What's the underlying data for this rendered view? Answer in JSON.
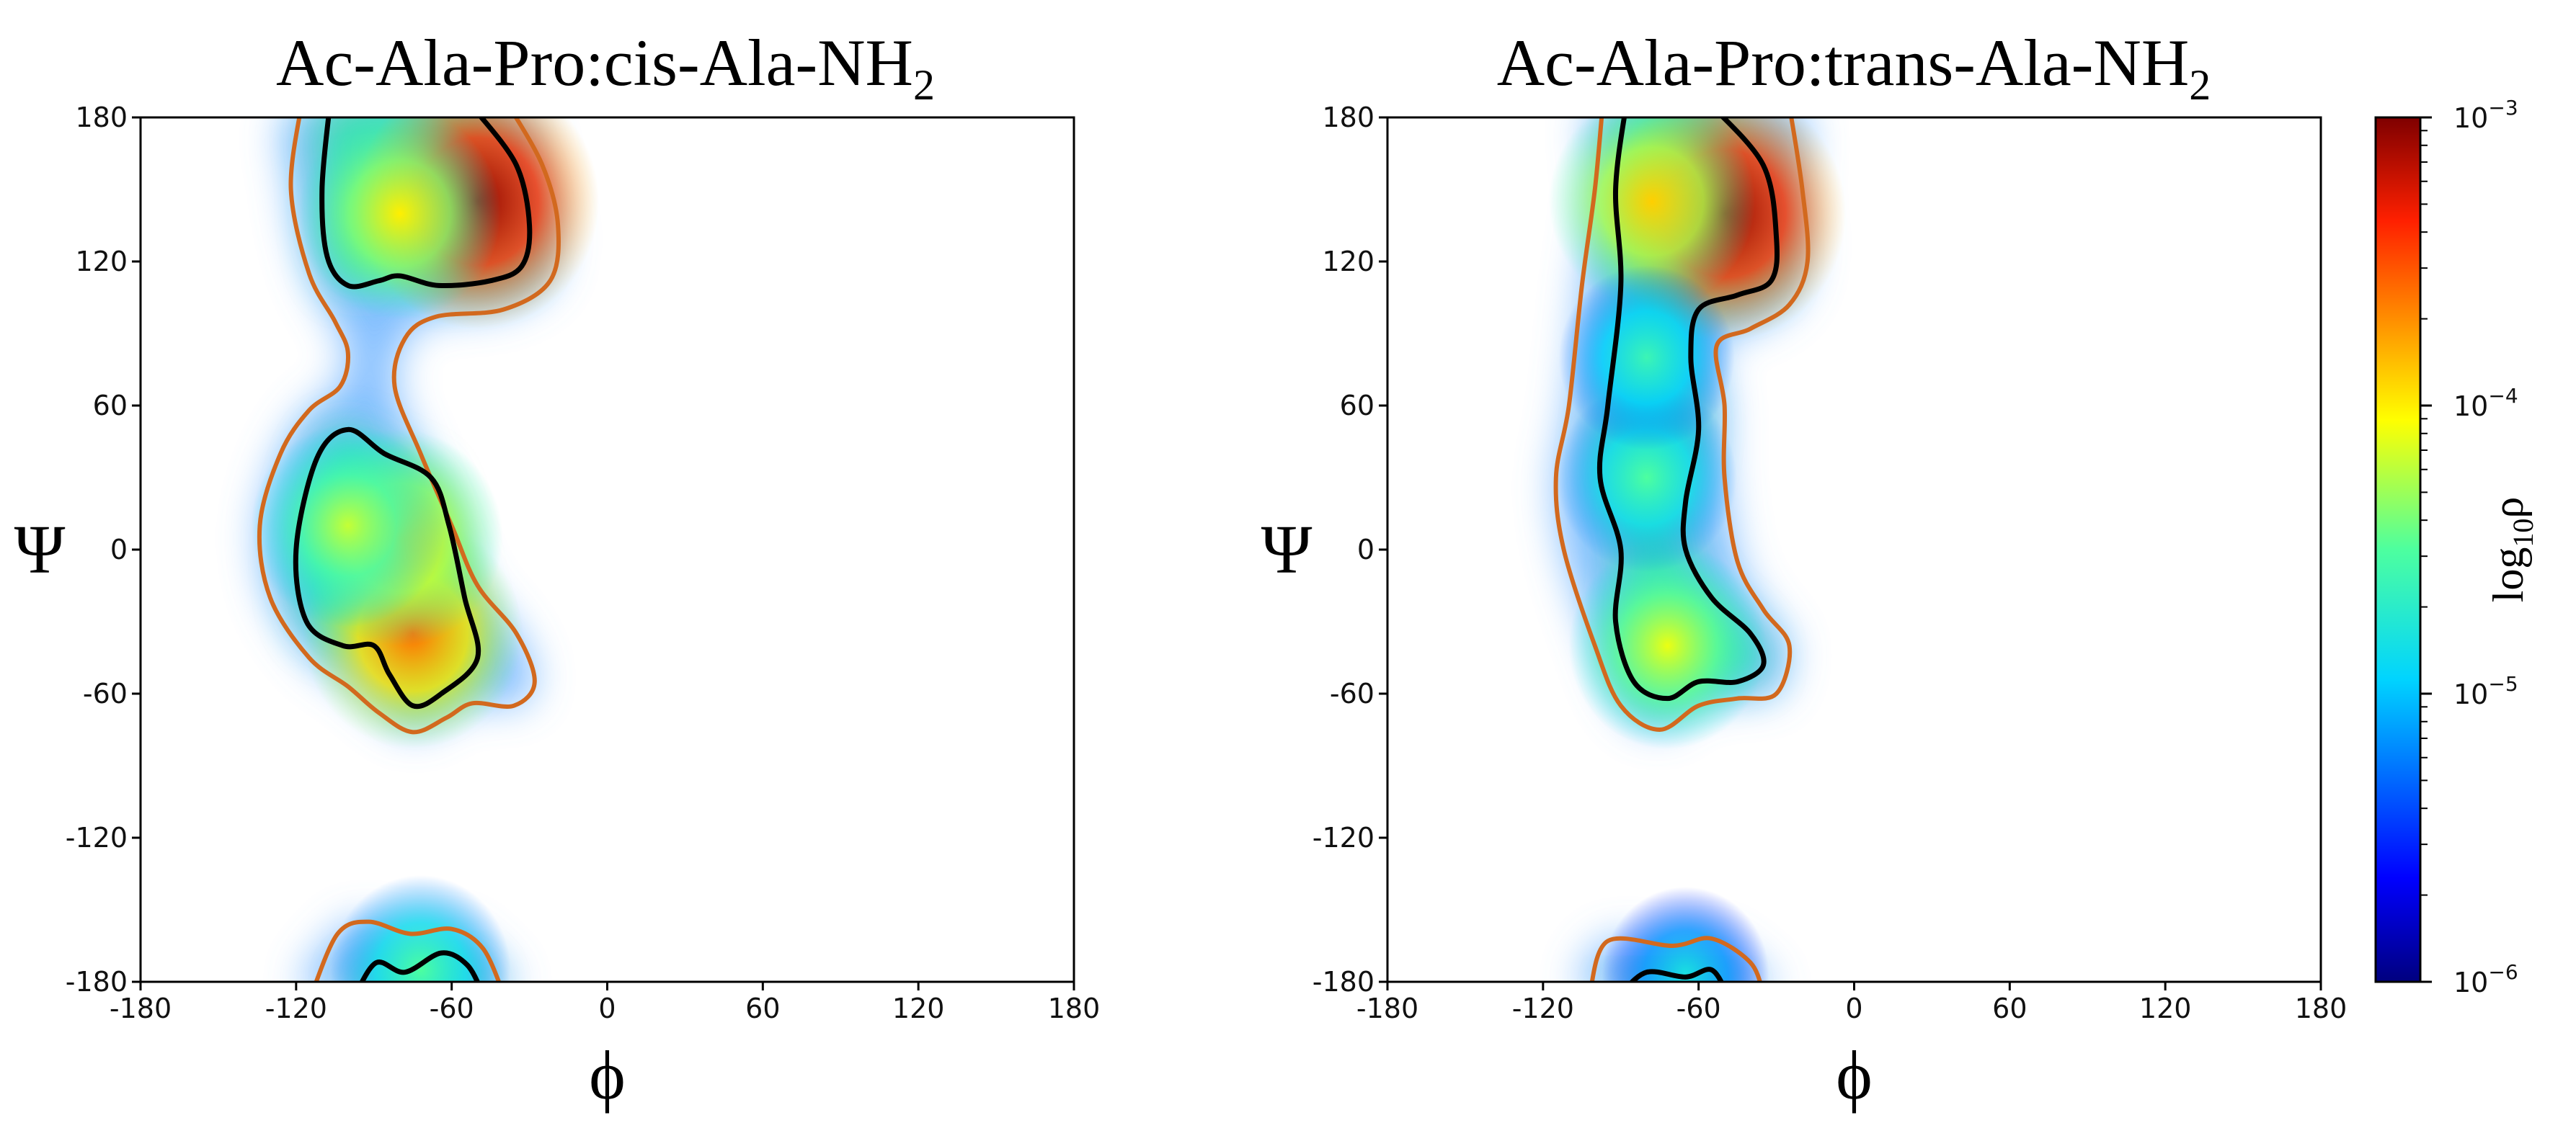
{
  "chart_data": [
    {
      "type": "heatmap",
      "title": "Ac-Ala-Pro:cis-Ala-NH",
      "title_subscript": "2",
      "xlabel": "ϕ",
      "ylabel": "Ψ",
      "xlim": [
        -180,
        180
      ],
      "ylim": [
        -180,
        180
      ],
      "xticks": [
        -180,
        -120,
        -60,
        0,
        60,
        120,
        180
      ],
      "yticks": [
        -180,
        -120,
        -60,
        0,
        60,
        120,
        180
      ],
      "grid": false,
      "density_peaks": [
        {
          "phi": -50,
          "psi": 145,
          "log10_rho": -3.05
        },
        {
          "phi": -80,
          "psi": 140,
          "log10_rho": -4.0
        },
        {
          "phi": -75,
          "psi": -35,
          "log10_rho": -3.6
        },
        {
          "phi": -80,
          "psi": 5,
          "log10_rho": -3.9
        },
        {
          "phi": -100,
          "psi": 10,
          "log10_rho": -4.2
        },
        {
          "phi": -72,
          "psi": -175,
          "log10_rho": -4.5
        }
      ],
      "contours": [
        {
          "level": "inner",
          "color": "#000000",
          "points": [
            [
              -107,
              185
            ],
            [
              -110,
              150
            ],
            [
              -108,
              122
            ],
            [
              -100,
              110
            ],
            [
              -88,
              112
            ],
            [
              -80,
              114
            ],
            [
              -65,
              110
            ],
            [
              -45,
              112
            ],
            [
              -33,
              118
            ],
            [
              -30,
              135
            ],
            [
              -35,
              160
            ],
            [
              -50,
              182
            ]
          ]
        },
        {
          "level": "outer",
          "color": "#d2691e",
          "points": [
            [
              -118,
              185
            ],
            [
              -122,
              150
            ],
            [
              -115,
              115
            ],
            [
              -105,
              95
            ],
            [
              -100,
              82
            ],
            [
              -103,
              68
            ],
            [
              -115,
              58
            ],
            [
              -126,
              40
            ],
            [
              -134,
              10
            ],
            [
              -130,
              -20
            ],
            [
              -115,
              -45
            ],
            [
              -100,
              -57
            ],
            [
              -88,
              -68
            ],
            [
              -75,
              -76
            ],
            [
              -62,
              -70
            ],
            [
              -52,
              -64
            ],
            [
              -36,
              -65
            ],
            [
              -28,
              -55
            ],
            [
              -35,
              -35
            ],
            [
              -50,
              -15
            ],
            [
              -60,
              10
            ],
            [
              -72,
              40
            ],
            [
              -82,
              68
            ],
            [
              -78,
              88
            ],
            [
              -66,
              97
            ],
            [
              -40,
              100
            ],
            [
              -22,
              112
            ],
            [
              -19,
              135
            ],
            [
              -25,
              160
            ],
            [
              -38,
              185
            ]
          ]
        },
        {
          "level": "inner",
          "color": "#000000",
          "closed": true,
          "points": [
            [
              -100,
              50
            ],
            [
              -112,
              38
            ],
            [
              -120,
              0
            ],
            [
              -116,
              -30
            ],
            [
              -102,
              -40
            ],
            [
              -90,
              -40
            ],
            [
              -84,
              -52
            ],
            [
              -75,
              -65
            ],
            [
              -64,
              -60
            ],
            [
              -50,
              -45
            ],
            [
              -55,
              -20
            ],
            [
              -61,
              10
            ],
            [
              -68,
              30
            ],
            [
              -86,
              40
            ]
          ]
        },
        {
          "level": "outer",
          "color": "#d2691e",
          "points": [
            [
              -114,
              -185
            ],
            [
              -104,
              -160
            ],
            [
              -92,
              -155
            ],
            [
              -76,
              -160
            ],
            [
              -60,
              -158
            ],
            [
              -48,
              -166
            ],
            [
              -40,
              -185
            ]
          ]
        },
        {
          "level": "inner",
          "color": "#000000",
          "points": [
            [
              -97,
              -185
            ],
            [
              -89,
              -172
            ],
            [
              -78,
              -176
            ],
            [
              -64,
              -168
            ],
            [
              -54,
              -173
            ],
            [
              -48,
              -185
            ]
          ]
        }
      ]
    },
    {
      "type": "heatmap",
      "title": "Ac-Ala-Pro:trans-Ala-NH",
      "title_subscript": "2",
      "xlabel": "ϕ",
      "ylabel": "Ψ",
      "xlim": [
        -180,
        180
      ],
      "ylim": [
        -180,
        180
      ],
      "xticks": [
        -180,
        -120,
        -60,
        0,
        60,
        120,
        180
      ],
      "yticks": [
        -180,
        -120,
        -60,
        0,
        60,
        120,
        180
      ],
      "grid": false,
      "density_peaks": [
        {
          "phi": -50,
          "psi": 140,
          "log10_rho": -3.05
        },
        {
          "phi": -78,
          "psi": 145,
          "log10_rho": -3.9
        },
        {
          "phi": -72,
          "psi": -40,
          "log10_rho": -4.1
        },
        {
          "phi": -80,
          "psi": 30,
          "log10_rho": -4.5
        },
        {
          "phi": -80,
          "psi": 80,
          "log10_rho": -4.6
        },
        {
          "phi": -65,
          "psi": -177,
          "log10_rho": -4.8
        }
      ],
      "contours": [
        {
          "level": "inner",
          "color": "#000000",
          "points": [
            [
              -88,
              185
            ],
            [
              -92,
              150
            ],
            [
              -90,
              110
            ],
            [
              -95,
              60
            ],
            [
              -98,
              30
            ],
            [
              -90,
              0
            ],
            [
              -92,
              -30
            ],
            [
              -85,
              -55
            ],
            [
              -72,
              -62
            ],
            [
              -60,
              -55
            ],
            [
              -45,
              -55
            ],
            [
              -35,
              -48
            ],
            [
              -40,
              -35
            ],
            [
              -55,
              -20
            ],
            [
              -65,
              0
            ],
            [
              -65,
              20
            ],
            [
              -60,
              50
            ],
            [
              -63,
              80
            ],
            [
              -60,
              100
            ],
            [
              -45,
              106
            ],
            [
              -32,
              112
            ],
            [
              -30,
              130
            ],
            [
              -35,
              160
            ],
            [
              -55,
              185
            ]
          ]
        },
        {
          "level": "outer",
          "color": "#d2691e",
          "points": [
            [
              -97,
              185
            ],
            [
              -100,
              150
            ],
            [
              -105,
              110
            ],
            [
              -110,
              60
            ],
            [
              -115,
              30
            ],
            [
              -112,
              0
            ],
            [
              -100,
              -40
            ],
            [
              -90,
              -65
            ],
            [
              -75,
              -75
            ],
            [
              -60,
              -65
            ],
            [
              -45,
              -62
            ],
            [
              -30,
              -60
            ],
            [
              -25,
              -40
            ],
            [
              -35,
              -25
            ],
            [
              -45,
              -5
            ],
            [
              -50,
              30
            ],
            [
              -50,
              60
            ],
            [
              -53,
              85
            ],
            [
              -40,
              92
            ],
            [
              -25,
              102
            ],
            [
              -18,
              120
            ],
            [
              -20,
              150
            ],
            [
              -25,
              185
            ]
          ]
        },
        {
          "level": "outer",
          "color": "#d2691e",
          "points": [
            [
              -102,
              -185
            ],
            [
              -95,
              -163
            ],
            [
              -70,
              -165
            ],
            [
              -55,
              -162
            ],
            [
              -40,
              -172
            ],
            [
              -35,
              -185
            ]
          ]
        },
        {
          "level": "inner",
          "color": "#000000",
          "points": [
            [
              -90,
              -185
            ],
            [
              -80,
              -176
            ],
            [
              -65,
              -178
            ],
            [
              -55,
              -175
            ],
            [
              -49,
              -185
            ]
          ]
        }
      ]
    }
  ],
  "colorbar": {
    "label": "log",
    "label_subscript": "10",
    "label_symbol": "ρ",
    "colormap": "jet",
    "scale": "log",
    "range": [
      1e-06,
      0.001
    ],
    "ticks": [
      {
        "value": 0.001,
        "base": "10",
        "exp": "−3"
      },
      {
        "value": 0.0001,
        "base": "10",
        "exp": "−4"
      },
      {
        "value": 1e-05,
        "base": "10",
        "exp": "−5"
      },
      {
        "value": 1e-06,
        "base": "10",
        "exp": "−6"
      }
    ]
  }
}
